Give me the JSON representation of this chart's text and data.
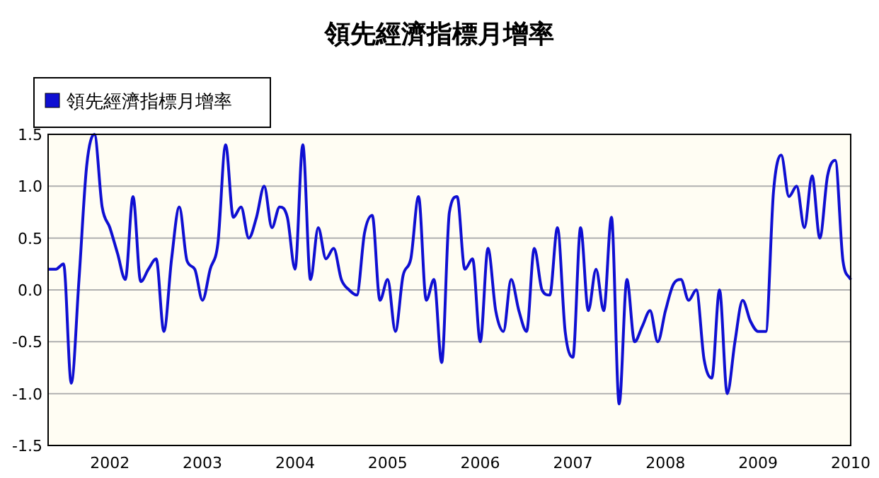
{
  "chart_data": {
    "type": "line",
    "title": "領先經濟指標月增率",
    "x": [
      "2001-05",
      "2001-06",
      "2001-07",
      "2001-08",
      "2001-09",
      "2001-10",
      "2001-11",
      "2001-12",
      "2002-01",
      "2002-02",
      "2002-03",
      "2002-04",
      "2002-05",
      "2002-06",
      "2002-07",
      "2002-08",
      "2002-09",
      "2002-10",
      "2002-11",
      "2002-12",
      "2003-01",
      "2003-02",
      "2003-03",
      "2003-04",
      "2003-05",
      "2003-06",
      "2003-07",
      "2003-08",
      "2003-09",
      "2003-10",
      "2003-11",
      "2003-12",
      "2004-01",
      "2004-02",
      "2004-03",
      "2004-04",
      "2004-05",
      "2004-06",
      "2004-07",
      "2004-08",
      "2004-09",
      "2004-10",
      "2004-11",
      "2004-12",
      "2005-01",
      "2005-02",
      "2005-03",
      "2005-04",
      "2005-05",
      "2005-06",
      "2005-07",
      "2005-08",
      "2005-09",
      "2005-10",
      "2005-11",
      "2005-12",
      "2006-01",
      "2006-02",
      "2006-03",
      "2006-04",
      "2006-05",
      "2006-06",
      "2006-07",
      "2006-08",
      "2006-09",
      "2006-10",
      "2006-11",
      "2006-12",
      "2007-01",
      "2007-02",
      "2007-03",
      "2007-04",
      "2007-05",
      "2007-06",
      "2007-07",
      "2007-08",
      "2007-09",
      "2007-10",
      "2007-11",
      "2007-12",
      "2008-01",
      "2008-02",
      "2008-03",
      "2008-04",
      "2008-05",
      "2008-06",
      "2008-07",
      "2008-08",
      "2008-09",
      "2008-10",
      "2008-11",
      "2008-12",
      "2009-01",
      "2009-02",
      "2009-03",
      "2009-04",
      "2009-05",
      "2009-06",
      "2009-07",
      "2009-08",
      "2009-09",
      "2009-10",
      "2009-11",
      "2009-12",
      "2010-01"
    ],
    "series": [
      {
        "name": "領先經濟指標月增率",
        "color": "#0f0fd2",
        "values": [
          0.2,
          0.2,
          0.25,
          -0.9,
          0.1,
          1.2,
          1.5,
          0.8,
          0.6,
          0.35,
          0.1,
          0.9,
          0.08,
          0.2,
          0.3,
          -0.4,
          0.3,
          0.8,
          0.28,
          0.2,
          -0.1,
          0.2,
          0.45,
          1.4,
          0.7,
          0.8,
          0.5,
          0.7,
          1.0,
          0.6,
          0.8,
          0.7,
          0.2,
          1.4,
          0.1,
          0.6,
          0.3,
          0.4,
          0.1,
          0.0,
          -0.05,
          0.55,
          0.72,
          -0.1,
          0.1,
          -0.4,
          0.14,
          0.3,
          0.9,
          -0.1,
          0.1,
          -0.7,
          0.75,
          0.9,
          0.2,
          0.3,
          -0.5,
          0.4,
          -0.2,
          -0.4,
          0.1,
          -0.2,
          -0.4,
          0.4,
          0.0,
          -0.05,
          0.6,
          -0.4,
          -0.65,
          0.6,
          -0.2,
          0.2,
          -0.2,
          0.7,
          -1.1,
          0.1,
          -0.5,
          -0.35,
          -0.2,
          -0.5,
          -0.2,
          0.05,
          0.1,
          -0.1,
          0.0,
          -0.67,
          -0.85,
          0.0,
          -1.0,
          -0.5,
          -0.1,
          -0.3,
          -0.4,
          -0.4,
          0.95,
          1.3,
          0.9,
          1.0,
          0.6,
          1.1,
          0.5,
          1.1,
          1.25,
          0.28,
          0.1
        ]
      }
    ],
    "xlim": [
      "2001-05",
      "2010-01"
    ],
    "xticks": [
      {
        "value": "2002-01",
        "label": "2002"
      },
      {
        "value": "2003-01",
        "label": "2003"
      },
      {
        "value": "2004-01",
        "label": "2004"
      },
      {
        "value": "2005-01",
        "label": "2005"
      },
      {
        "value": "2006-01",
        "label": "2006"
      },
      {
        "value": "2007-01",
        "label": "2007"
      },
      {
        "value": "2008-01",
        "label": "2008"
      },
      {
        "value": "2009-01",
        "label": "2009"
      },
      {
        "value": "2010-01",
        "label": "2010"
      }
    ],
    "ylim": [
      -1.5,
      1.5
    ],
    "yticks": [
      1.5,
      {
        "value": 1,
        "label": "1.0"
      },
      0.5,
      {
        "value": 0,
        "label": "0.0"
      },
      -0.5,
      {
        "value": -1,
        "label": "-1.0"
      },
      -1.5
    ],
    "grid": "y",
    "legend": "top left",
    "marker": "none",
    "line_style": "solid"
  }
}
